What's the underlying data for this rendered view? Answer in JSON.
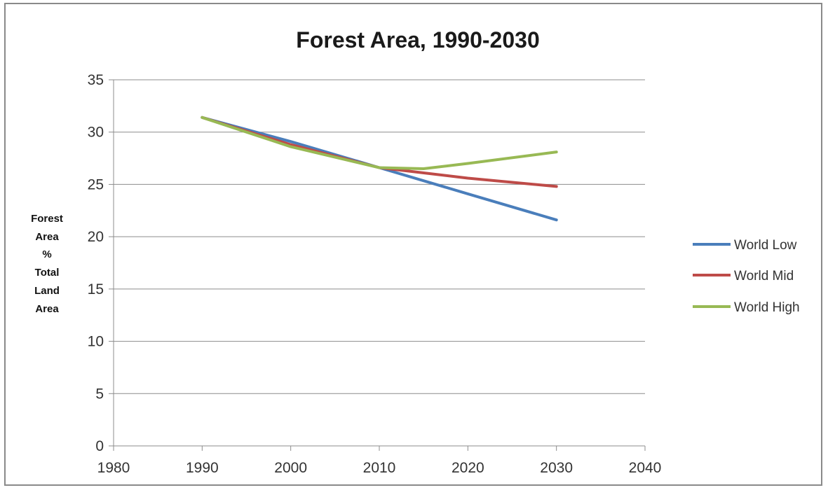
{
  "chart_data": {
    "type": "line",
    "title": "Forest Area, 1990-2030",
    "ylabel_lines": [
      "Forest",
      "Area",
      "%",
      "Total",
      "Land",
      "Area"
    ],
    "xlabel": "",
    "xlim": [
      1980,
      2040
    ],
    "ylim": [
      0,
      35
    ],
    "x_ticks": [
      1980,
      1990,
      2000,
      2010,
      2020,
      2030,
      2040
    ],
    "y_ticks": [
      0,
      5,
      10,
      15,
      20,
      25,
      30,
      35
    ],
    "grid": "horizontal",
    "legend": "right",
    "series": [
      {
        "name": "World Low",
        "color": "#4a7ebb",
        "x": [
          1990,
          2000,
          2010,
          2020,
          2030
        ],
        "y": [
          31.4,
          29.1,
          26.6,
          24.1,
          21.6
        ]
      },
      {
        "name": "World Mid",
        "color": "#be4b48",
        "x": [
          1990,
          2000,
          2010,
          2020,
          2030
        ],
        "y": [
          31.4,
          28.8,
          26.6,
          25.6,
          24.8
        ]
      },
      {
        "name": "World High",
        "color": "#98b954",
        "x": [
          1990,
          2000,
          2010,
          2015,
          2020,
          2030
        ],
        "y": [
          31.4,
          28.6,
          26.6,
          26.5,
          27.0,
          28.1
        ]
      }
    ]
  }
}
